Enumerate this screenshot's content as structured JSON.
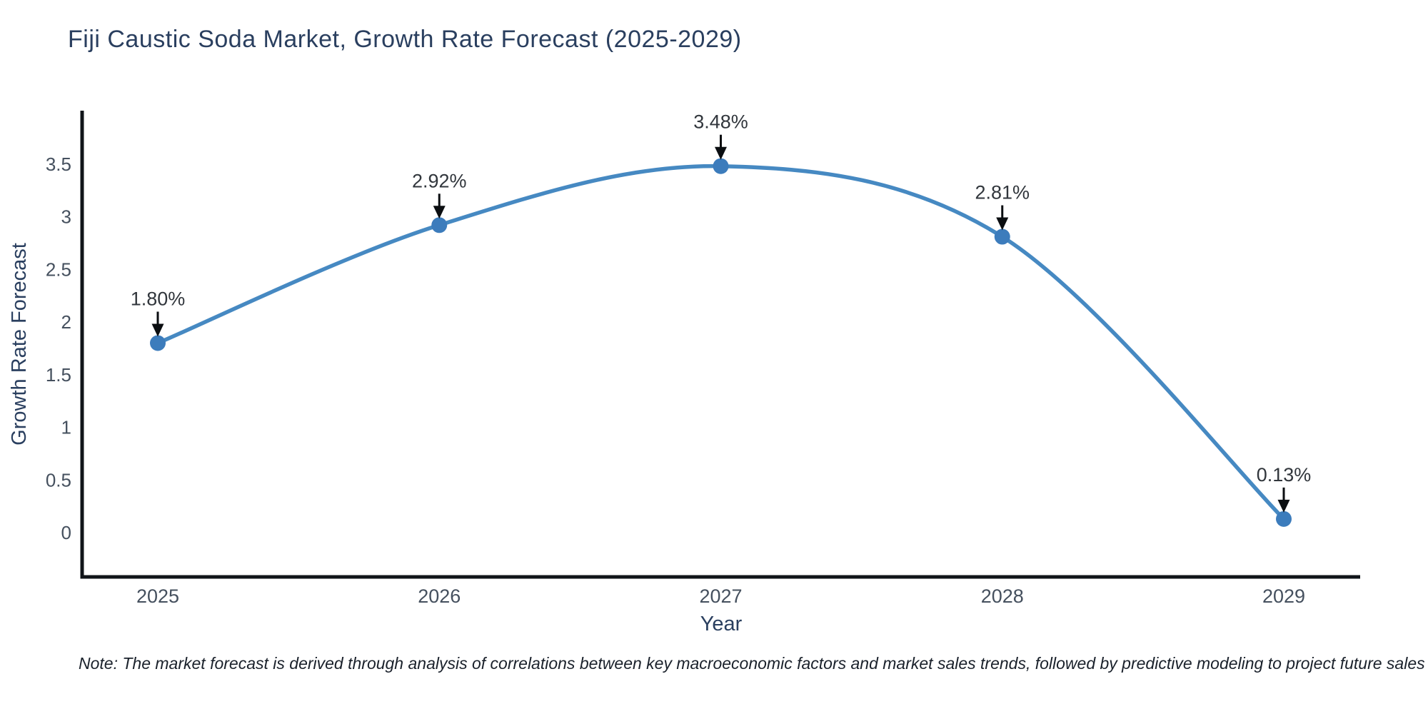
{
  "title": "Fiji Caustic Soda Market, Growth Rate Forecast (2025-2029)",
  "footnote": "Note: The market forecast is derived through analysis of correlations between key macroeconomic factors and market sales trends, followed by predictive modeling to project future sales",
  "chart_data": {
    "type": "line",
    "title": "Fiji Caustic Soda Market, Growth Rate Forecast (2025-2029)",
    "x": [
      "2025",
      "2026",
      "2027",
      "2028",
      "2029"
    ],
    "series": [
      {
        "name": "Growth Rate Forecast",
        "values": [
          1.8,
          2.92,
          3.48,
          2.81,
          0.13
        ]
      }
    ],
    "point_labels": [
      "1.80%",
      "2.92%",
      "3.48%",
      "2.81%",
      "0.13%"
    ],
    "xlabel": "Year",
    "ylabel": "Growth Rate Forecast",
    "yticks": [
      0,
      0.5,
      1,
      1.5,
      2,
      2.5,
      3,
      3.5
    ],
    "ylim": [
      -0.43,
      4.0
    ],
    "line_shape": "spline",
    "grid": false,
    "legend": false,
    "annotations_have_arrows": true,
    "colors": {
      "line": "#4689c2",
      "marker": "#3c7cbc",
      "axis": "#101419",
      "title": "#2a3f5f",
      "axis_label": "#2a3f5f",
      "tick_label": "#45505e",
      "annotation_text": "#31363c",
      "arrow": "#0b0e11",
      "background": "#ffffff"
    }
  }
}
